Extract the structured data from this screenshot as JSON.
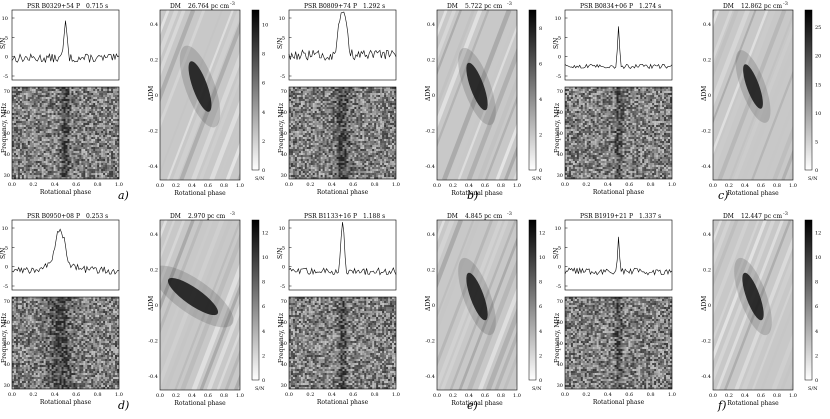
{
  "figure": {
    "panels": [
      {
        "letter": "a)",
        "pulsar": "PSR B0329+54",
        "period_label": "P",
        "period": "0.715 s",
        "dm_label": "DM",
        "dm": "26.764 pc cm",
        "dm_sup": "-3",
        "pulse_center": 0.5,
        "pulse_width": 0.02,
        "pulse_peak": 9,
        "pulse_shape": "single",
        "cbar_ticks": [
          "0",
          "2",
          "4",
          "6",
          "8",
          "10"
        ],
        "cbar_max": 11,
        "bowtie_strength": 0.55
      },
      {
        "letter": "b)",
        "pulsar": "PSR B0809+74",
        "period_label": "P",
        "period": "1.292 s",
        "dm_label": "DM",
        "dm": "5.722 pc cm",
        "dm_sup": "-3",
        "pulse_center": 0.5,
        "pulse_width": 0.035,
        "pulse_peak": 7,
        "pulse_shape": "double",
        "cbar_ticks": [
          "0",
          "2",
          "4",
          "6",
          "8"
        ],
        "cbar_max": 9,
        "bowtie_strength": 0.45
      },
      {
        "letter": "c)",
        "pulsar": "PSR B0834+06",
        "period_label": "P",
        "period": "1.274 s",
        "dm_label": "DM",
        "dm": "12.862 pc cm",
        "dm_sup": "-3",
        "pulse_center": 0.5,
        "pulse_width": 0.012,
        "pulse_peak": 22,
        "pulse_shape": "single",
        "cbar_ticks": [
          "0",
          "5",
          "10",
          "15",
          "20",
          "25"
        ],
        "cbar_max": 28,
        "bowtie_strength": 0.35
      },
      {
        "letter": "d)",
        "pulsar": "PSR B0950+08",
        "period_label": "P",
        "period": "0.253 s",
        "dm_label": "DM",
        "dm": "2.970 pc cm",
        "dm_sup": "-3",
        "pulse_center": 0.45,
        "pulse_width": 0.06,
        "pulse_peak": 11,
        "pulse_shape": "broad",
        "cbar_ticks": [
          "0",
          "2",
          "4",
          "6",
          "8",
          "10",
          "12"
        ],
        "cbar_max": 13,
        "bowtie_strength": 0.75
      },
      {
        "letter": "e)",
        "pulsar": "PSR B1133+16",
        "period_label": "P",
        "period": "1.188 s",
        "dm_label": "DM",
        "dm": "4.845 pc cm",
        "dm_sup": "-3",
        "pulse_center": 0.5,
        "pulse_width": 0.015,
        "pulse_peak": 12,
        "pulse_shape": "double",
        "cbar_ticks": [
          "0",
          "2",
          "4",
          "6",
          "8",
          "10",
          "12"
        ],
        "cbar_max": 13,
        "bowtie_strength": 0.45
      },
      {
        "letter": "f)",
        "pulsar": "PSR B1919+21",
        "period_label": "P",
        "period": "1.337 s",
        "dm_label": "DM",
        "dm": "12.447 pc cm",
        "dm_sup": "-3",
        "pulse_center": 0.5,
        "pulse_width": 0.012,
        "pulse_peak": 12,
        "pulse_shape": "single",
        "cbar_ticks": [
          "0",
          "2",
          "4",
          "6",
          "8",
          "10",
          "12"
        ],
        "cbar_max": 13,
        "bowtie_strength": 0.45
      }
    ],
    "axis_labels": {
      "sn": "S/N",
      "freq": "Frequency, MHz",
      "phase": "Rotational phase",
      "ddm": "ΔDM",
      "cbar": "S/N"
    },
    "phase_ticks": [
      "0.0",
      "0.2",
      "0.4",
      "0.6",
      "0.8",
      "1.0"
    ],
    "freq_ticks": [
      "70",
      "60",
      "50",
      "40",
      "30"
    ],
    "ddm_ticks": [
      "0.4",
      "0.2",
      "0",
      "-0.2",
      "-0.4"
    ],
    "sn_ticks_a": [
      "10",
      "5",
      "0",
      "-5"
    ],
    "colors": {
      "ink": "#000000",
      "paper": "#ffffff"
    }
  }
}
